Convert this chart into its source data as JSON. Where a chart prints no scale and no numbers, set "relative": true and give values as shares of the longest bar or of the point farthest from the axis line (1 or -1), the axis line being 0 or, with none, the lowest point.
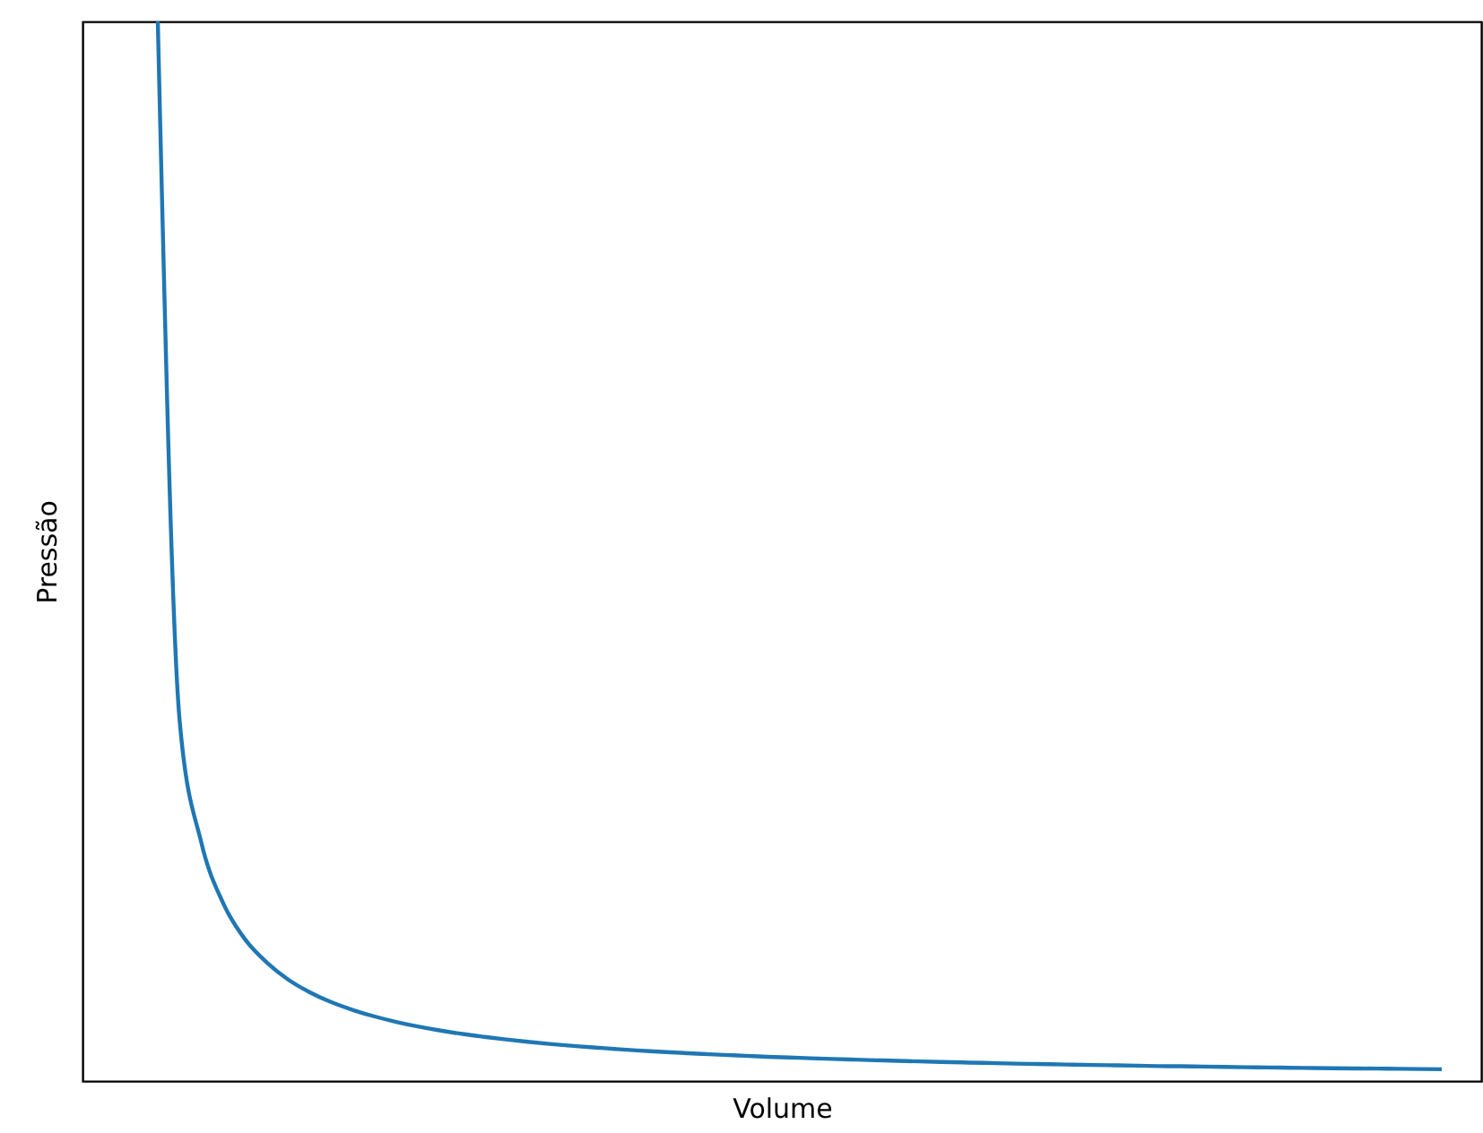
{
  "chart_data": {
    "type": "line",
    "relative": true,
    "xlabel": "Volume",
    "ylabel": "Pressão",
    "grid": false,
    "tick_labels": false,
    "categories": [
      null,
      null,
      null,
      null,
      null,
      null,
      null,
      null,
      null,
      null,
      null,
      null,
      null,
      null,
      null,
      null,
      null,
      null,
      null,
      null,
      null,
      null,
      null,
      null,
      null,
      null,
      null,
      null,
      null,
      null,
      null,
      null,
      null,
      null,
      null,
      null,
      null,
      null,
      null,
      null,
      null,
      null,
      null,
      null,
      null,
      null,
      null,
      null,
      null,
      null,
      null,
      null,
      null,
      null,
      null,
      null,
      null,
      null,
      null,
      null
    ],
    "series": [
      {
        "color": "#1f77b4",
        "values": [
          1.0,
          0.341,
          0.225,
          0.168,
          0.134,
          0.112,
          0.0956,
          0.0836,
          0.0742,
          0.0668,
          0.0607,
          0.0556,
          0.0513,
          0.0476,
          0.0444,
          0.0417,
          0.0392,
          0.037,
          0.035,
          0.0333,
          0.0317,
          0.0303,
          0.0289,
          0.0277,
          0.0266,
          0.0256,
          0.0246,
          0.0238,
          0.0229,
          0.0222,
          0.0215,
          0.0208,
          0.0202,
          0.0196,
          0.019,
          0.0185,
          0.018,
          0.0175,
          0.0171,
          0.0166,
          0.0162,
          0.0158,
          0.0155,
          0.0151,
          0.0148,
          0.0145,
          0.0141,
          0.0139,
          0.0136,
          0.0133,
          0.013,
          0.0128,
          0.0125,
          0.0123,
          0.0121,
          0.0119,
          0.0117,
          0.0115,
          0.0113,
          0.0111
        ]
      }
    ]
  }
}
